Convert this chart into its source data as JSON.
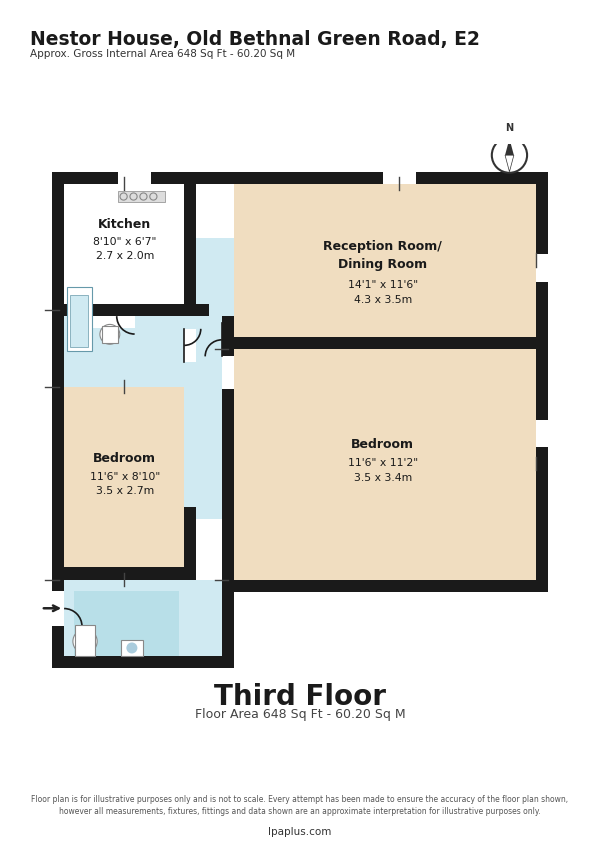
{
  "title": "Nestor House, Old Bethnal Green Road, E2",
  "subtitle": "Approx. Gross Internal Area 648 Sq Ft - 60.20 Sq M",
  "floor_label": "Third Floor",
  "floor_area": "Floor Area 648 Sq Ft - 60.20 Sq M",
  "disclaimer": "Floor plan is for illustrative purposes only and is not to scale. Every attempt has been made to ensure the accuracy of the floor plan shown,\nhowever all measurements, fixtures, fittings and data shown are an approximate interpretation for illustrative purposes only.",
  "website": "lpaplus.com",
  "bg_color": "#ffffff",
  "wall_color": "#1a1a1a",
  "beige": "#f0ddc0",
  "blue": "#b8dfe8",
  "blue_light": "#d0eaf2"
}
